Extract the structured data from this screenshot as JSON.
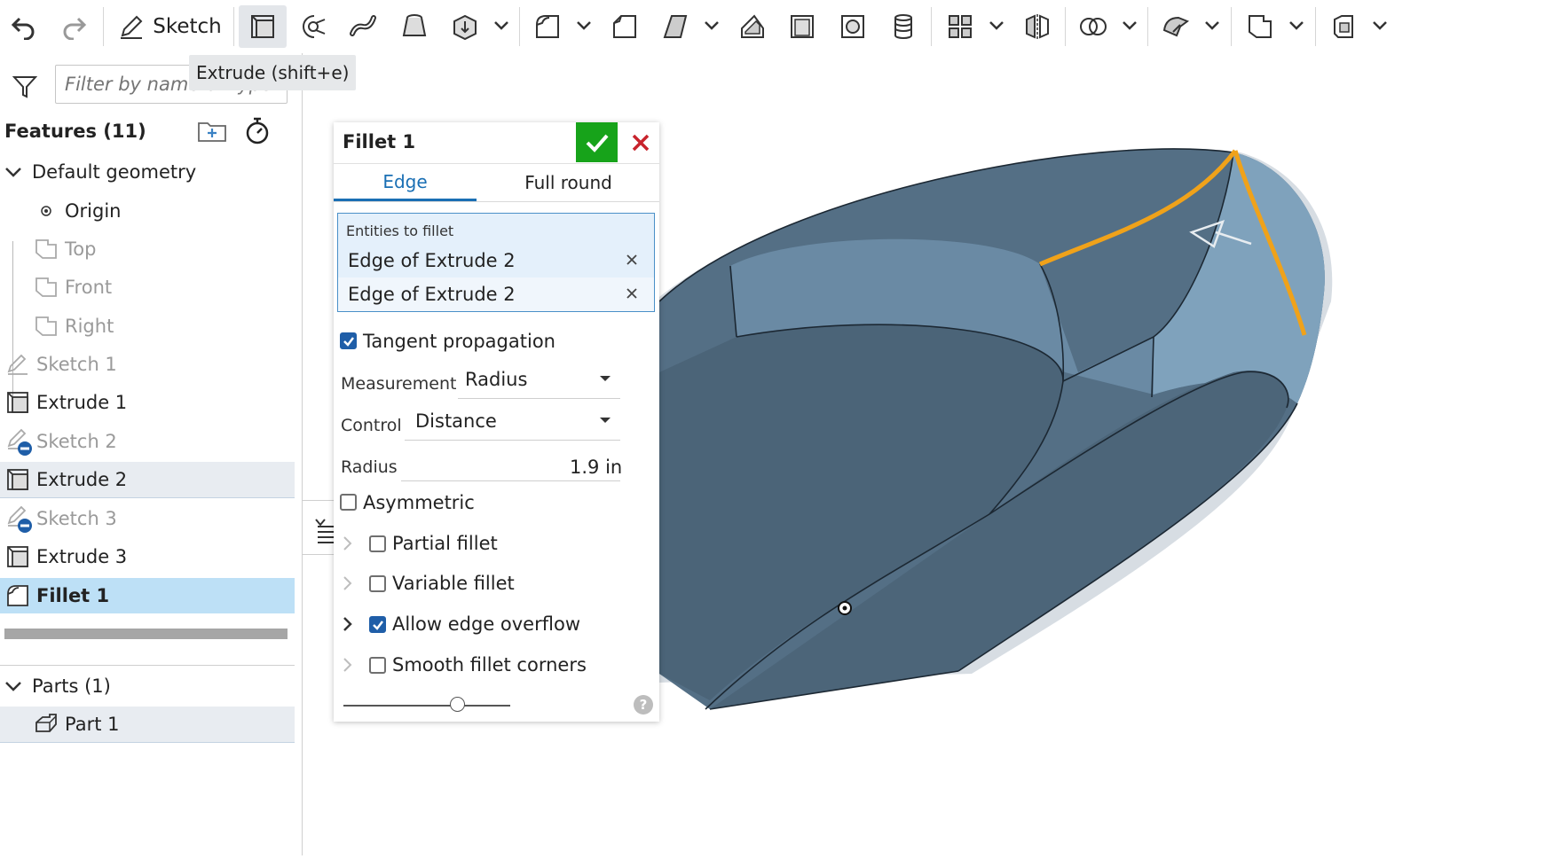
{
  "toolbar": {
    "sketch_label": "Sketch",
    "tooltip": "Extrude (shift+e)"
  },
  "feature_tree": {
    "filter_placeholder": "Filter by name or type",
    "header": "Features (11)",
    "items": [
      {
        "label": "Default geometry"
      },
      {
        "label": "Origin"
      },
      {
        "label": "Top"
      },
      {
        "label": "Front"
      },
      {
        "label": "Right"
      },
      {
        "label": "Sketch 1"
      },
      {
        "label": "Extrude 1"
      },
      {
        "label": "Sketch 2"
      },
      {
        "label": "Extrude 2"
      },
      {
        "label": "Sketch 3"
      },
      {
        "label": "Extrude 3"
      },
      {
        "label": "Fillet 1"
      }
    ],
    "parts_header": "Parts (1)",
    "parts": [
      {
        "label": "Part 1"
      }
    ]
  },
  "dialog": {
    "title": "Fillet 1",
    "tabs": [
      {
        "label": "Edge"
      },
      {
        "label": "Full round"
      }
    ],
    "entities_label": "Entities to fillet",
    "entities": [
      "Edge of Extrude 2",
      "Edge of Extrude 2"
    ],
    "tangent_propagation": {
      "label": "Tangent propagation",
      "checked": true
    },
    "measurement": {
      "label": "Measurement",
      "value": "Radius"
    },
    "control": {
      "label": "Control",
      "value": "Distance"
    },
    "radius": {
      "label": "Radius",
      "value": "1.9 in"
    },
    "asymmetric": {
      "label": "Asymmetric",
      "checked": false
    },
    "partial_fillet": {
      "label": "Partial fillet",
      "checked": false
    },
    "variable_fillet": {
      "label": "Variable fillet",
      "checked": false
    },
    "allow_edge_overflow": {
      "label": "Allow edge overflow",
      "checked": true
    },
    "smooth_fillet_corners": {
      "label": "Smooth fillet corners",
      "checked": false
    },
    "slider_value": 0.7,
    "help": "?"
  },
  "colors": {
    "accent": "#1a6fb4",
    "ok_green": "#17a31a",
    "cancel_red": "#c8232c",
    "selection": "#bde0f6",
    "model": "#4f6b82",
    "edge_highlight": "#f0a21a"
  }
}
